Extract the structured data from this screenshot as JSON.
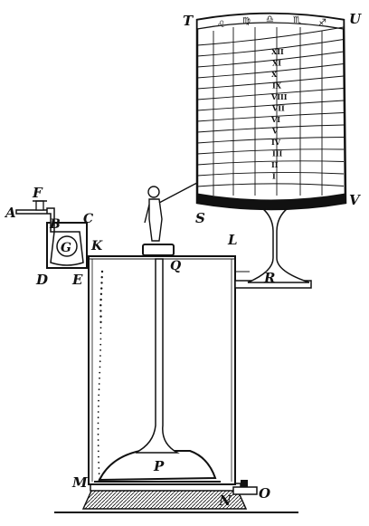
{
  "labels": {
    "A": "A",
    "B": "B",
    "C": "C",
    "D": "D",
    "E": "E",
    "F": "F",
    "G": "G",
    "K": "K",
    "L": "L",
    "M": "M",
    "N": "N",
    "O": "O",
    "P": "P",
    "Q": "Q",
    "R": "R",
    "S": "S",
    "T": "T",
    "U": "U",
    "V": "V"
  },
  "hour_numerals": [
    "XII",
    "XI",
    "X",
    "IX",
    "VIII",
    "VII",
    "VI",
    "V",
    "IV",
    "III",
    "II",
    "I"
  ],
  "zodiac_signs": [
    "♌",
    "♍",
    "♎",
    "♏",
    "♐"
  ],
  "colors": {
    "ink": "#111111",
    "paper": "#ffffff"
  }
}
